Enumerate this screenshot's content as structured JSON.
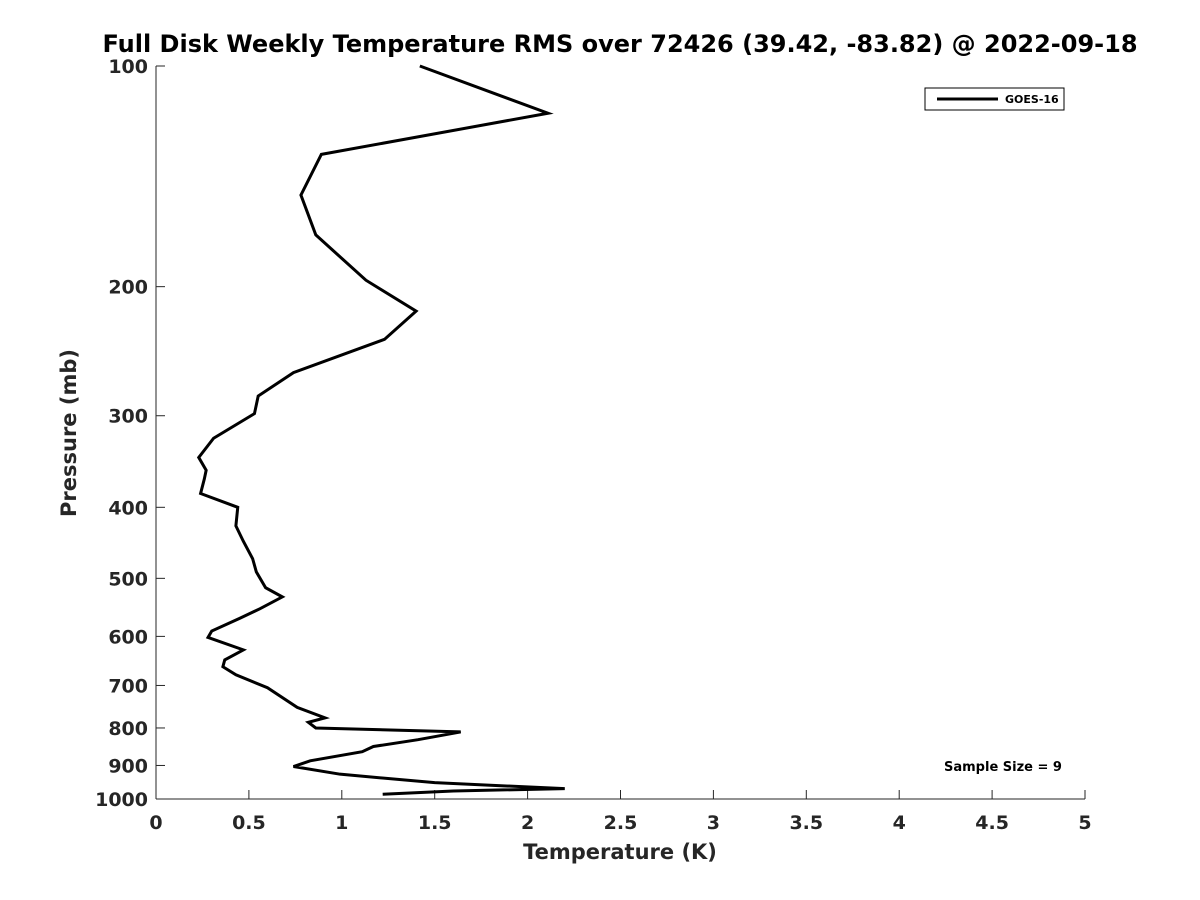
{
  "chart_data": {
    "type": "line",
    "title": "Full Disk Weekly Temperature RMS over 72426 (39.42, -83.82) @ 2022-09-18",
    "xlabel": "Temperature (K)",
    "ylabel": "Pressure (mb)",
    "xlim": [
      0,
      5
    ],
    "ylim": [
      100,
      1000
    ],
    "y_scale": "log",
    "y_reversed": true,
    "x_ticks": [
      "0",
      "0.5",
      "1",
      "1.5",
      "2",
      "2.5",
      "3",
      "3.5",
      "4",
      "4.5",
      "5"
    ],
    "y_ticks": [
      "100",
      "200",
      "300",
      "400",
      "500",
      "600",
      "700",
      "800",
      "900",
      "1000"
    ],
    "grid": false,
    "legend_position": "top-right",
    "annotation": "Sample Size = 9",
    "series": [
      {
        "name": "GOES-16",
        "color": "#000000",
        "points": [
          [
            1.42,
            100
          ],
          [
            2.11,
            116
          ],
          [
            0.89,
            132
          ],
          [
            0.78,
            150
          ],
          [
            0.86,
            170
          ],
          [
            1.13,
            196
          ],
          [
            1.4,
            216
          ],
          [
            1.23,
            236
          ],
          [
            0.74,
            262
          ],
          [
            0.55,
            282
          ],
          [
            0.53,
            298
          ],
          [
            0.31,
            322
          ],
          [
            0.23,
            342
          ],
          [
            0.27,
            356
          ],
          [
            0.26,
            366
          ],
          [
            0.24,
            383
          ],
          [
            0.44,
            400
          ],
          [
            0.43,
            424
          ],
          [
            0.47,
            445
          ],
          [
            0.52,
            470
          ],
          [
            0.54,
            490
          ],
          [
            0.59,
            515
          ],
          [
            0.68,
            530
          ],
          [
            0.56,
            550
          ],
          [
            0.45,
            567
          ],
          [
            0.3,
            590
          ],
          [
            0.28,
            602
          ],
          [
            0.47,
            626
          ],
          [
            0.37,
            646
          ],
          [
            0.36,
            660
          ],
          [
            0.43,
            677
          ],
          [
            0.6,
            705
          ],
          [
            0.76,
            750
          ],
          [
            0.91,
            775
          ],
          [
            0.82,
            786
          ],
          [
            0.86,
            800
          ],
          [
            1.64,
            810
          ],
          [
            1.41,
            830
          ],
          [
            1.17,
            848
          ],
          [
            1.11,
            862
          ],
          [
            0.83,
            887
          ],
          [
            0.74,
            903
          ],
          [
            0.99,
            925
          ],
          [
            1.5,
            950
          ],
          [
            2.2,
            968
          ],
          [
            1.6,
            975
          ],
          [
            1.22,
            985
          ]
        ]
      }
    ]
  }
}
